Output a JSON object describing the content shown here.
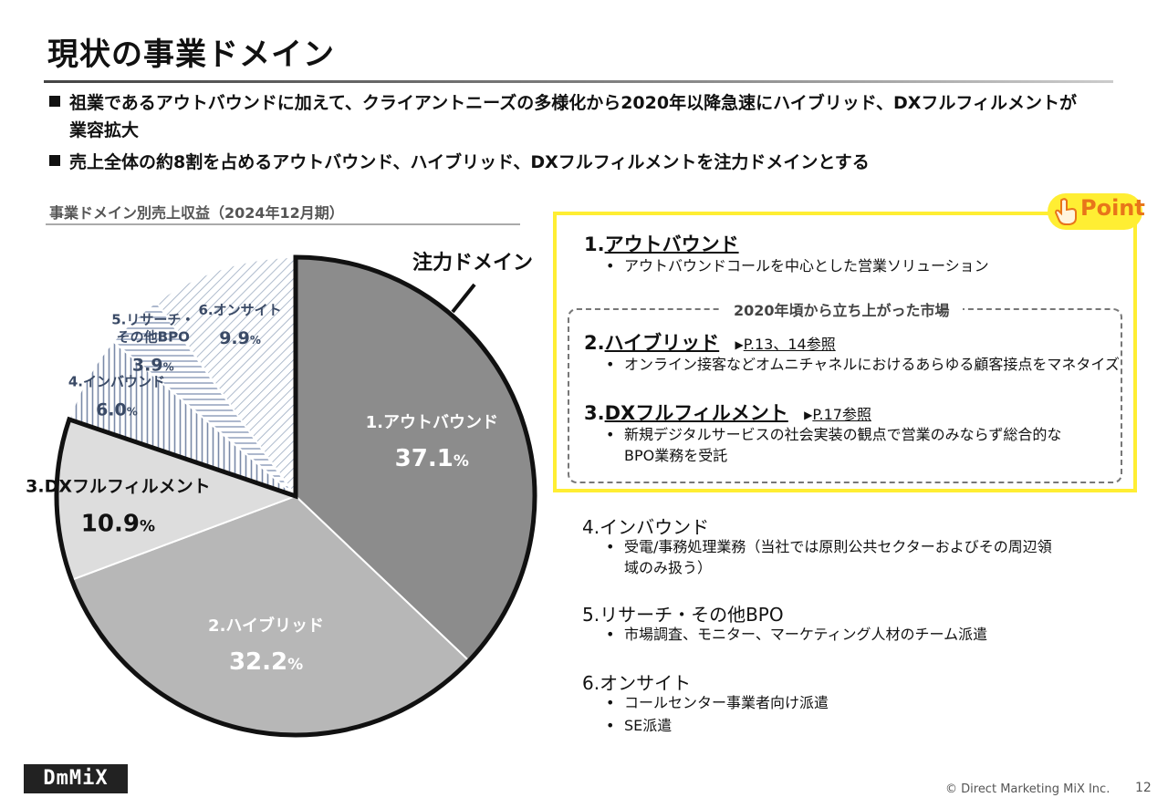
{
  "title": "現状の事業ドメイン",
  "bullets": [
    {
      "line1": "祖業であるアウトバウンドに加えて、クライアントニーズの多様化から2020年以降急速にハイブリッド、DXフルフィルメントが",
      "line2": "業容拡大"
    },
    {
      "line1": "売上全体の約8割を占めるアウトバウンド、ハイブリッド、DXフルフィルメントを注力ドメインとする",
      "line2": ""
    }
  ],
  "chart_title": "事業ドメイン別売上収益（2024年12月期）",
  "focus_label": "注力ドメイン",
  "point_badge": "Point",
  "chart_data": {
    "type": "pie",
    "title": "事業ドメイン別売上収益（2024年12月期）",
    "slices": [
      {
        "label": "1.アウトバウンド",
        "value": 37.1,
        "value_text": "37.1",
        "color": "#8c8c8c",
        "label_color": "#ffffff",
        "focus": true
      },
      {
        "label": "2.ハイブリッド",
        "value": 32.2,
        "value_text": "32.2",
        "color": "#b7b7b7",
        "label_color": "#ffffff",
        "focus": true
      },
      {
        "label": "3.DXフルフィルメント",
        "value": 10.9,
        "value_text": "10.9",
        "color": "#dddddd",
        "label_color": "#111111",
        "focus": true
      },
      {
        "label": "4.インバウンド",
        "value": 6.0,
        "value_text": "6.0",
        "color": "#ffffff",
        "label_color": "#3a4a66",
        "focus": false,
        "pattern": "vlines"
      },
      {
        "label": "5.リサーチ・その他BPO",
        "label_lines": [
          "5.リサーチ・",
          "その他BPO"
        ],
        "value": 3.9,
        "value_text": "3.9",
        "color": "#ffffff",
        "label_color": "#3a4a66",
        "focus": false,
        "pattern": "hlines"
      },
      {
        "label": "6.オンサイト",
        "value": 9.9,
        "value_text": "9.9",
        "color": "#ffffff",
        "label_color": "#3a4a66",
        "focus": false,
        "pattern": "dlines"
      }
    ],
    "unit": "%"
  },
  "point_section": {
    "outbound": {
      "num": "1.",
      "name": "アウトバウンド",
      "desc": "アウトバウンドコールを中心とした営業ソリューション"
    },
    "market_label": "2020年頃から立ち上がった市場",
    "hybrid": {
      "num": "2.",
      "name": "ハイブリッド",
      "ref": "P.13、14参照",
      "desc": "オンライン接客などオムニチャネルにおけるあらゆる顧客接点をマネタイズ"
    },
    "dx": {
      "num": "3.",
      "name": "DXフルフィルメント",
      "ref": "P.17参照",
      "desc_line1": "新規デジタルサービスの社会実装の観点で営業のみならず総合的な",
      "desc_line2": "BPO業務を受託"
    }
  },
  "other_segments": {
    "inbound": {
      "name": "4.インバウンド",
      "desc_line1": "受電/事務処理業務（当社では原則公共セクターおよびその周辺領",
      "desc_line2": "域のみ扱う）"
    },
    "research": {
      "name": "5.リサーチ・その他BPO",
      "desc": "市場調査、モニター、マーケティング人材のチーム派遣"
    },
    "onsite": {
      "name": "6.オンサイト",
      "desc1": "コールセンター事業者向け派遣",
      "desc2": "SE派遣"
    }
  },
  "bullet_dot": "•",
  "triangle": "▶",
  "logo": "DmMiX",
  "copyright": "© Direct Marketing MiX Inc.",
  "page_number": "12"
}
